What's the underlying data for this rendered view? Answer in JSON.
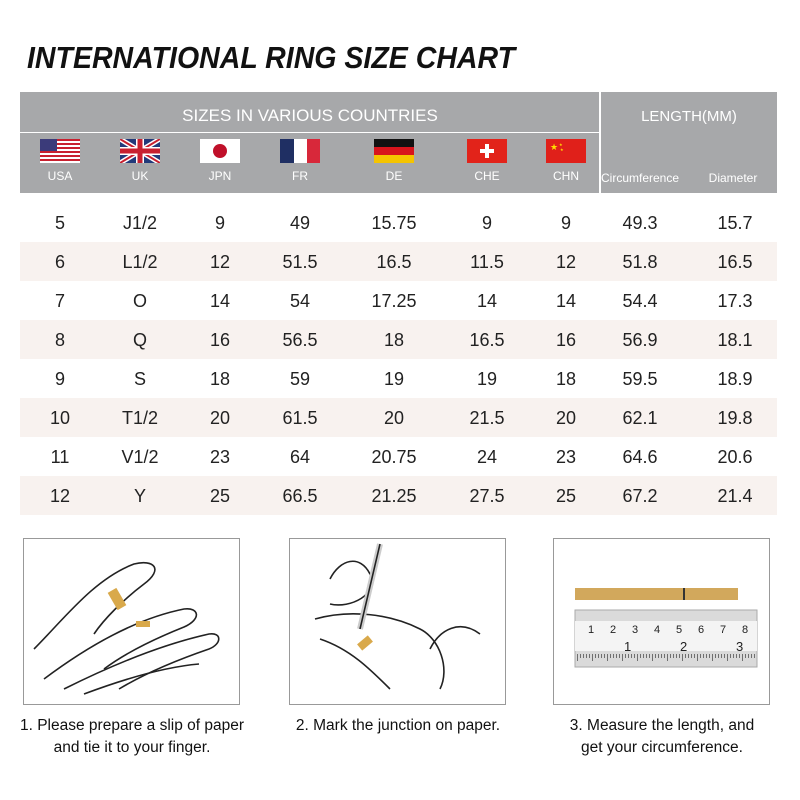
{
  "title": "INTERNATIONAL RING SIZE CHART",
  "header": {
    "sizes_title": "SIZES IN VARIOUS COUNTRIES",
    "length_title": "LENGTH(MM)",
    "countries": [
      {
        "label": "USA",
        "icon": "usa-flag-icon"
      },
      {
        "label": "UK",
        "icon": "uk-flag-icon"
      },
      {
        "label": "JPN",
        "icon": "japan-flag-icon"
      },
      {
        "label": "FR",
        "icon": "france-flag-icon"
      },
      {
        "label": "DE",
        "icon": "germany-flag-icon"
      },
      {
        "label": "CHE",
        "icon": "switzerland-flag-icon"
      },
      {
        "label": "CHN",
        "icon": "china-flag-icon"
      }
    ],
    "length_cols": [
      "Circumference",
      "Diameter"
    ]
  },
  "rows": [
    [
      "5",
      "J1/2",
      "9",
      "49",
      "15.75",
      "9",
      "9",
      "49.3",
      "15.7"
    ],
    [
      "6",
      "L1/2",
      "12",
      "51.5",
      "16.5",
      "11.5",
      "12",
      "51.8",
      "16.5"
    ],
    [
      "7",
      "O",
      "14",
      "54",
      "17.25",
      "14",
      "14",
      "54.4",
      "17.3"
    ],
    [
      "8",
      "Q",
      "16",
      "56.5",
      "18",
      "16.5",
      "16",
      "56.9",
      "18.1"
    ],
    [
      "9",
      "S",
      "18",
      "59",
      "19",
      "19",
      "18",
      "59.5",
      "18.9"
    ],
    [
      "10",
      "T1/2",
      "20",
      "61.5",
      "20",
      "21.5",
      "20",
      "62.1",
      "19.8"
    ],
    [
      "11",
      "V1/2",
      "23",
      "64",
      "20.75",
      "24",
      "23",
      "64.6",
      "20.6"
    ],
    [
      "12",
      "Y",
      "25",
      "66.5",
      "21.25",
      "27.5",
      "25",
      "67.2",
      "21.4"
    ]
  ],
  "steps": [
    {
      "line1": "1. Please prepare a slip of paper",
      "line2": "and tie it to your finger."
    },
    {
      "line1": "2. Mark the junction on paper.",
      "line2": ""
    },
    {
      "line1": "3. Measure the length, and",
      "line2": "get your circumference."
    }
  ],
  "ruler": {
    "top_ticks": [
      "1",
      "2",
      "3",
      "4",
      "5",
      "6",
      "7",
      "8"
    ],
    "bottom_ticks": [
      "1",
      "2",
      "3"
    ]
  },
  "colors": {
    "header_bg": "#a7a8aa",
    "alt_row": "#f8f2ef",
    "paper_strip": "#d2a85c"
  }
}
